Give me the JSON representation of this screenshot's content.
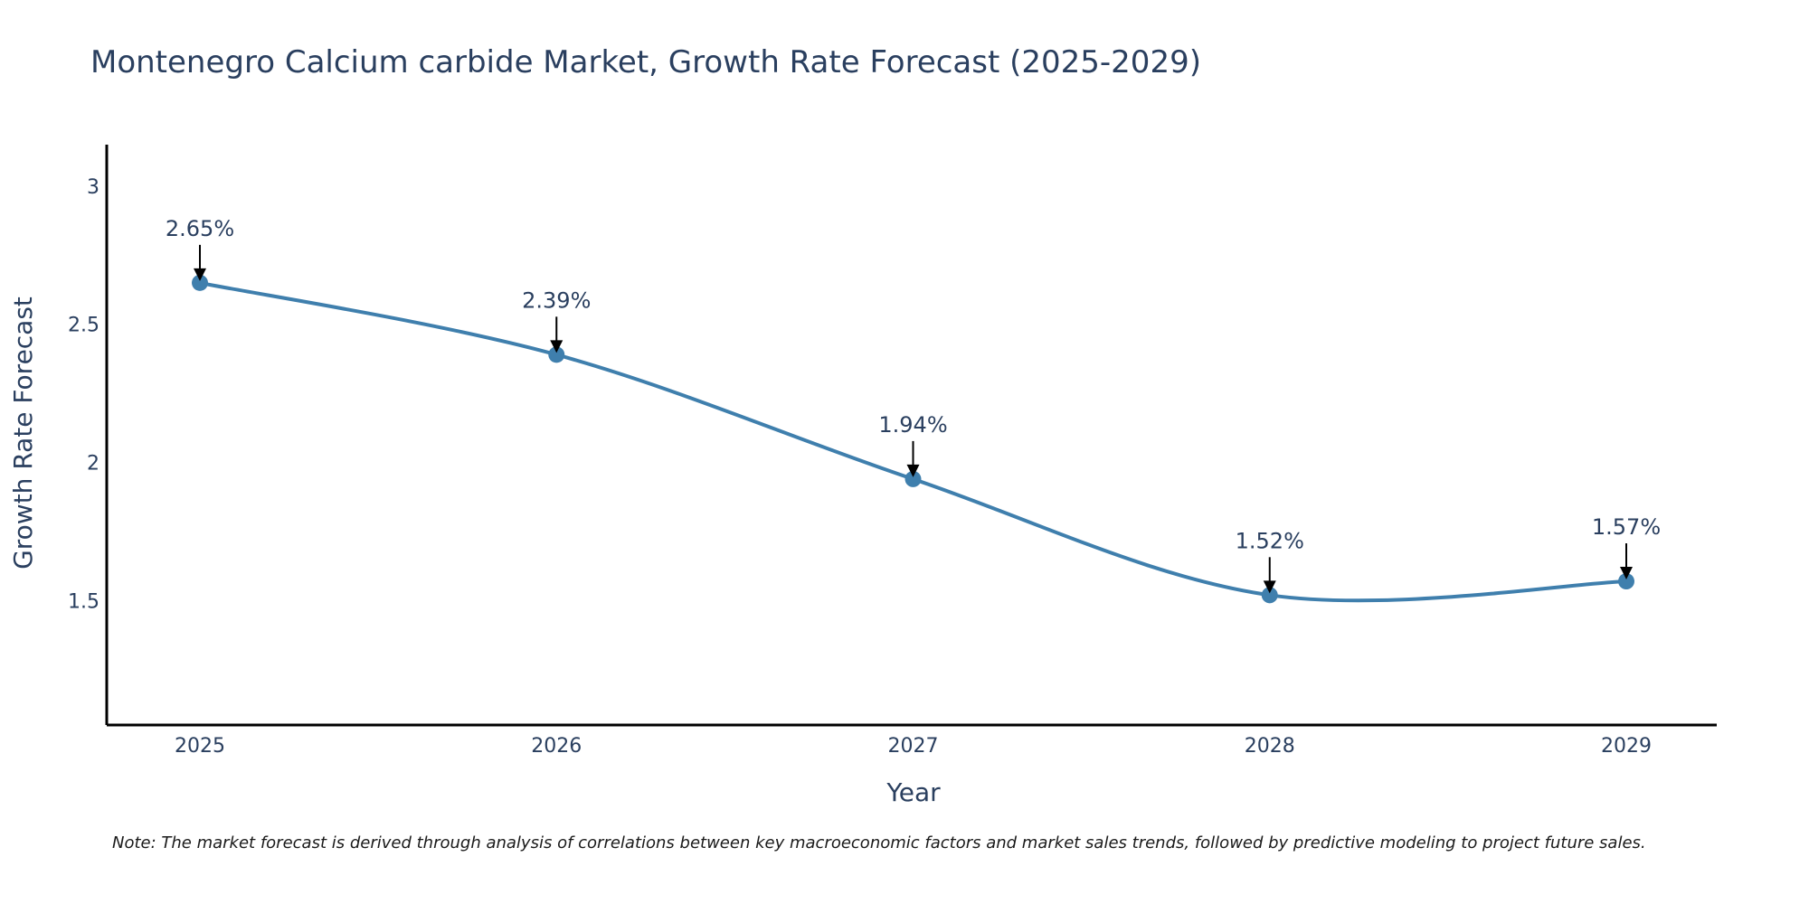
{
  "chart_data": {
    "type": "line",
    "title": "Montenegro Calcium carbide Market, Growth Rate Forecast (2025-2029)",
    "xlabel": "Year",
    "ylabel": "Growth Rate Forecast",
    "categories": [
      "2025",
      "2026",
      "2027",
      "2028",
      "2029"
    ],
    "values": [
      2.65,
      2.39,
      1.94,
      1.52,
      1.57
    ],
    "annotations": [
      "2.65%",
      "2.39%",
      "1.94%",
      "1.52%",
      "1.57%"
    ],
    "y_ticks": [
      1.5,
      2,
      2.5,
      3
    ],
    "y_tick_labels": [
      "1.5",
      "2",
      "2.5",
      "3"
    ],
    "ylim": [
      1.05,
      3.15
    ],
    "grid": false,
    "line_color": "#3f7fad",
    "marker_color": "#3f7fad",
    "axis_color": "#000000",
    "text_color": "#2a3f5f"
  },
  "note": "Note: The market forecast is derived through analysis of correlations between key macroeconomic factors and market sales trends, followed by predictive modeling to project future sales."
}
